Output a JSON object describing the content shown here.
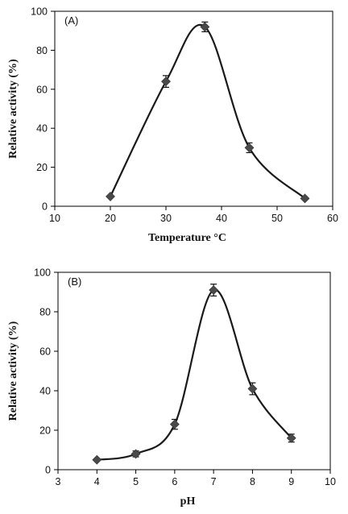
{
  "chart_data": [
    {
      "type": "scatter",
      "panel": "(A)",
      "xlabel": "Temperature °C",
      "ylabel": "Relative activity (%)",
      "xlim": [
        10,
        60
      ],
      "ylim": [
        0,
        100
      ],
      "xticks": [
        10,
        20,
        30,
        40,
        50,
        60
      ],
      "yticks": [
        0,
        20,
        40,
        60,
        80,
        100
      ],
      "smooth_line": true,
      "marker": "diamond",
      "points": [
        {
          "x": 20,
          "y": 5,
          "err": 0
        },
        {
          "x": 30,
          "y": 64,
          "err": 3
        },
        {
          "x": 37,
          "y": 92,
          "err": 2.5
        },
        {
          "x": 45,
          "y": 30,
          "err": 2.5
        },
        {
          "x": 55,
          "y": 4,
          "err": 0
        }
      ]
    },
    {
      "type": "scatter",
      "panel": "(B)",
      "xlabel": "pH",
      "ylabel": "Relative activity (%)",
      "xlim": [
        3,
        10
      ],
      "ylim": [
        0,
        100
      ],
      "xticks": [
        3,
        4,
        5,
        6,
        7,
        8,
        9,
        10
      ],
      "yticks": [
        0,
        20,
        40,
        60,
        80,
        100
      ],
      "smooth_line": true,
      "marker": "diamond",
      "points": [
        {
          "x": 4,
          "y": 5,
          "err": 0
        },
        {
          "x": 5,
          "y": 8,
          "err": 1.5
        },
        {
          "x": 6,
          "y": 23,
          "err": 2.5
        },
        {
          "x": 7,
          "y": 91,
          "err": 3
        },
        {
          "x": 8,
          "y": 41,
          "err": 3
        },
        {
          "x": 9,
          "y": 16,
          "err": 2
        }
      ]
    }
  ]
}
